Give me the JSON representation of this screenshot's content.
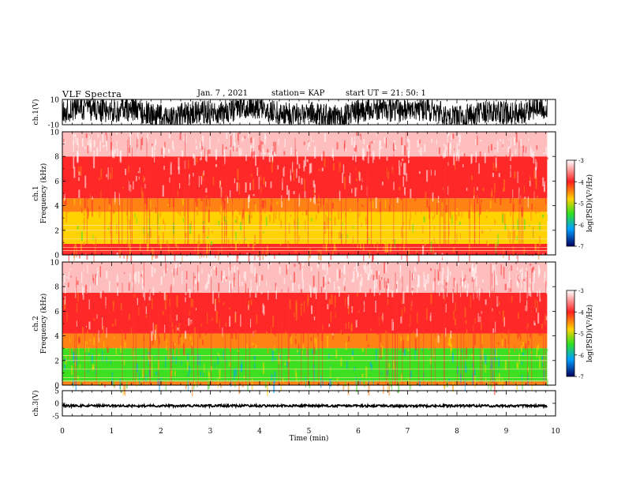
{
  "header": {
    "title": "VLF Spectra",
    "date": "Jan. 7 , 2021",
    "station": "station= KAP",
    "start": "start UT =  21: 50: 1"
  },
  "colors": {
    "spectrogram_hot": "#ff2a2a",
    "spectrogram_warm": "#ffd200",
    "spectrogram_cool": "#30e020",
    "trace": "#000000"
  },
  "chart_data": [
    {
      "type": "line",
      "panel": "ch1-waveform",
      "ylabel": "ch.1(V)",
      "ylim": [
        -10,
        10
      ],
      "yticks": [
        "10",
        "-10"
      ],
      "xlim": [
        0,
        10
      ],
      "note": "dense noisy black trace spanning approximately -10 to 10 V"
    },
    {
      "type": "heatmap",
      "panel": "ch1-spectrogram",
      "ylabel": "ch.1",
      "ylabel2": "Frequency (kHz)",
      "ylim": [
        0,
        10
      ],
      "yticks": [
        "0",
        "2",
        "4",
        "6",
        "8",
        "10"
      ],
      "xlim": [
        0,
        10
      ],
      "colorbar": {
        "label": "log(PSD)(V²/Hz)",
        "ticks": [
          "-3",
          "-4",
          "-5",
          "-6",
          "-7"
        ],
        "range": [
          -7,
          -3
        ]
      },
      "bands": [
        {
          "from": 0.0,
          "to": 0.2,
          "level": -3.5
        },
        {
          "from": 0.2,
          "to": 0.9,
          "level": -3.8
        },
        {
          "from": 0.9,
          "to": 3.5,
          "level": -4.6
        },
        {
          "from": 3.5,
          "to": 4.6,
          "level": -4.1
        },
        {
          "from": 4.6,
          "to": 8.0,
          "level": -3.6
        },
        {
          "from": 8.0,
          "to": 10.0,
          "level": -3.2
        }
      ]
    },
    {
      "type": "heatmap",
      "panel": "ch2-spectrogram",
      "ylabel": "ch.2",
      "ylabel2": "Frequency (kHz)",
      "ylim": [
        0,
        10
      ],
      "yticks": [
        "0",
        "2",
        "4",
        "6",
        "8",
        "10"
      ],
      "xlim": [
        0,
        10
      ],
      "colorbar": {
        "label": "log(PSD)(V²/Hz)",
        "ticks": [
          "-3",
          "-4",
          "-5",
          "-6",
          "-7"
        ],
        "range": [
          -7,
          -3
        ]
      },
      "bands": [
        {
          "from": 0.0,
          "to": 0.3,
          "level": -4.3
        },
        {
          "from": 0.3,
          "to": 3.0,
          "level": -5.2
        },
        {
          "from": 3.0,
          "to": 4.2,
          "level": -4.2
        },
        {
          "from": 4.2,
          "to": 7.5,
          "level": -3.7
        },
        {
          "from": 7.5,
          "to": 10.0,
          "level": -3.2
        }
      ]
    },
    {
      "type": "line",
      "panel": "ch3-waveform",
      "ylabel": "ch.3(V)",
      "ylim": [
        -5,
        5
      ],
      "yticks": [
        "5",
        "0",
        "-5"
      ],
      "xlim": [
        0,
        10
      ],
      "note": "nearly constant thick black trace near -1 V"
    }
  ],
  "x_axis": {
    "label": "Time (min)",
    "ticks": [
      "0",
      "1",
      "2",
      "3",
      "4",
      "5",
      "6",
      "7",
      "8",
      "9",
      "10"
    ]
  }
}
